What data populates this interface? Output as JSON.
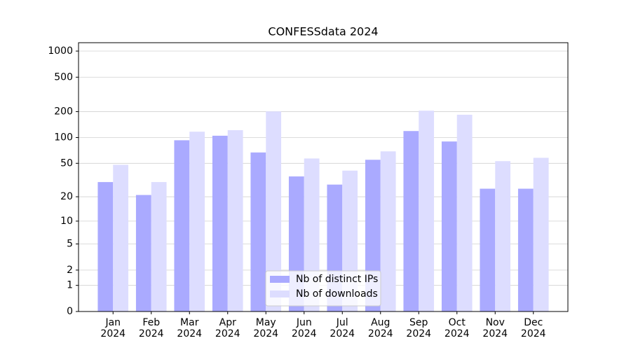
{
  "chart_data": {
    "type": "bar",
    "title": "CONFESSdata 2024",
    "yscale": "log1p",
    "categories": [
      "Jan\n2024",
      "Feb\n2024",
      "Mar\n2024",
      "Apr\n2024",
      "May\n2024",
      "Jun\n2024",
      "Jul\n2024",
      "Aug\n2024",
      "Sep\n2024",
      "Oct\n2024",
      "Nov\n2024",
      "Dec\n2024"
    ],
    "series": [
      {
        "name": "Nb of distinct IPs",
        "color": "#aaaaff",
        "values": [
          30,
          21,
          93,
          105,
          67,
          35,
          28,
          55,
          119,
          90,
          25,
          25
        ]
      },
      {
        "name": "Nb of downloads",
        "color": "#ddddff",
        "values": [
          48,
          30,
          117,
          122,
          201,
          57,
          41,
          69,
          205,
          184,
          53,
          58
        ]
      }
    ],
    "ylim": [
      0,
      1250
    ],
    "yticks": [
      0,
      1,
      2,
      5,
      10,
      20,
      50,
      100,
      200,
      500,
      1000
    ],
    "grid": true,
    "legend": "lower center"
  }
}
